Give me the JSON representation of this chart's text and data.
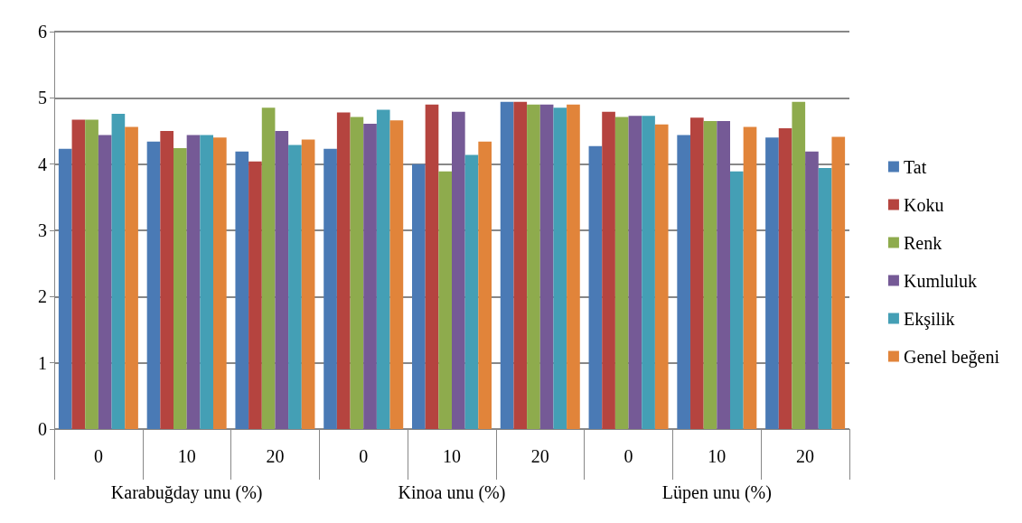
{
  "chart_data": {
    "type": "bar",
    "categories": [
      "0",
      "10",
      "20",
      "0",
      "10",
      "20",
      "0",
      "10",
      "20"
    ],
    "series": [
      {
        "name": "Tat",
        "color": "#4a7ab5",
        "values": [
          4.23,
          4.34,
          4.19,
          4.23,
          4.0,
          4.94,
          4.27,
          4.44,
          4.4
        ]
      },
      {
        "name": "Koku",
        "color": "#b5443f",
        "values": [
          4.67,
          4.5,
          4.04,
          4.78,
          4.9,
          4.94,
          4.79,
          4.7,
          4.54
        ]
      },
      {
        "name": "Renk",
        "color": "#8eab4d",
        "values": [
          4.67,
          4.24,
          4.85,
          4.71,
          3.89,
          4.9,
          4.71,
          4.65,
          4.94
        ]
      },
      {
        "name": "Kumluluk",
        "color": "#755a96",
        "values": [
          4.44,
          4.44,
          4.5,
          4.61,
          4.79,
          4.9,
          4.73,
          4.65,
          4.19
        ]
      },
      {
        "name": "Ekşilik",
        "color": "#449fb5",
        "values": [
          4.76,
          4.44,
          4.29,
          4.82,
          4.14,
          4.85,
          4.73,
          3.89,
          3.94
        ]
      },
      {
        "name": "Genel beğeni",
        "color": "#e1843a",
        "values": [
          4.56,
          4.4,
          4.37,
          4.66,
          4.34,
          4.9,
          4.6,
          4.56,
          4.41
        ]
      }
    ],
    "annotations": [
      "Karabuğday unu (%)",
      "Kinoa unu (%)",
      "Lüpen unu (%)"
    ],
    "ylim": [
      0,
      6
    ],
    "yticks": [
      0,
      1,
      2,
      3,
      4,
      5,
      6
    ],
    "grid": "y",
    "legend": "right"
  }
}
